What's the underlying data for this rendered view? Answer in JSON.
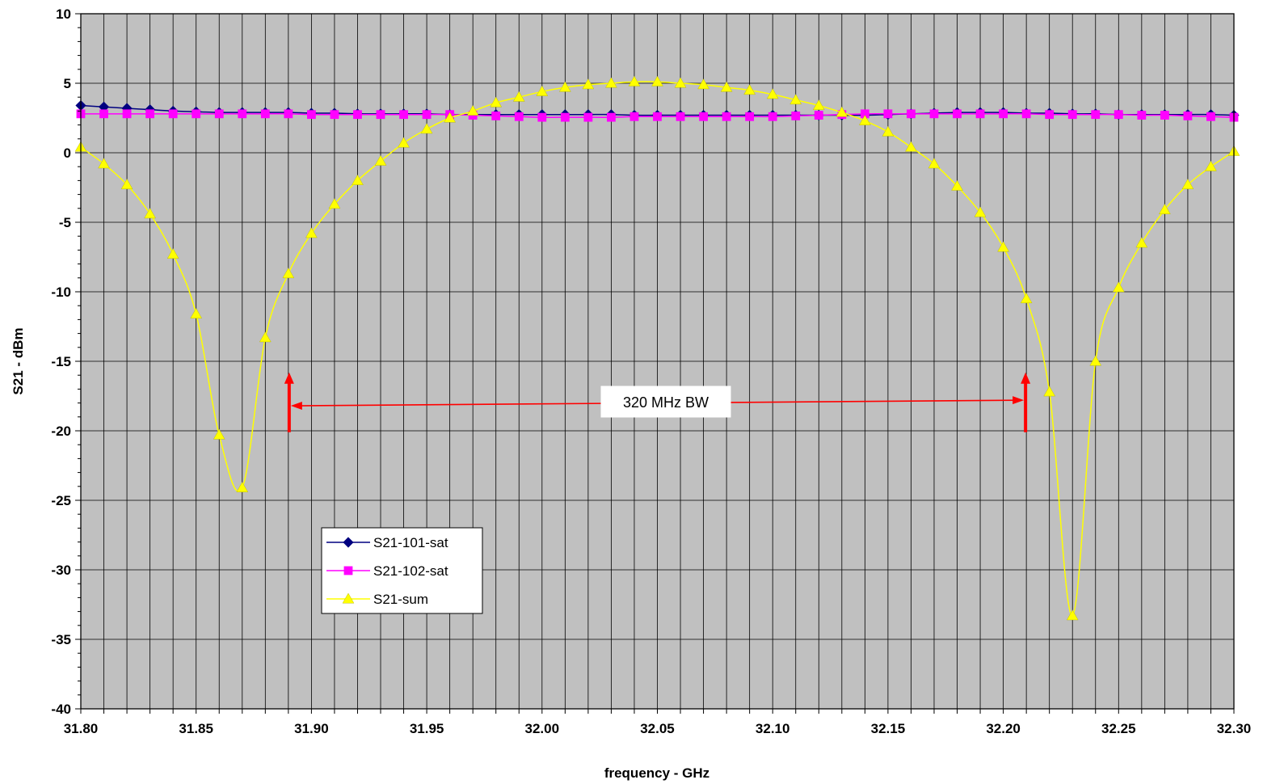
{
  "chart_data": {
    "type": "line",
    "xlabel": "frequency - GHz",
    "ylabel": "S21 - dBm",
    "xlim": [
      31.8,
      32.3
    ],
    "ylim": [
      -40,
      10
    ],
    "x_ticks": [
      "31.80",
      "31.85",
      "31.90",
      "31.95",
      "32.00",
      "32.05",
      "32.10",
      "32.15",
      "32.20",
      "32.25",
      "32.30"
    ],
    "y_ticks": [
      "10",
      "5",
      "0",
      "-5",
      "-10",
      "-15",
      "-20",
      "-25",
      "-30",
      "-35",
      "-40"
    ],
    "grid": true,
    "plot_background": "#c0c0c0",
    "legend_position": "lower-left",
    "x": [
      31.8,
      31.81,
      31.82,
      31.83,
      31.84,
      31.85,
      31.86,
      31.87,
      31.88,
      31.89,
      31.9,
      31.91,
      31.92,
      31.93,
      31.94,
      31.95,
      31.96,
      31.97,
      31.98,
      31.99,
      32.0,
      32.01,
      32.02,
      32.03,
      32.04,
      32.05,
      32.06,
      32.07,
      32.08,
      32.09,
      32.1,
      32.11,
      32.12,
      32.13,
      32.14,
      32.15,
      32.16,
      32.17,
      32.18,
      32.19,
      32.2,
      32.21,
      32.22,
      32.23,
      32.24,
      32.25,
      32.26,
      32.27,
      32.28,
      32.29,
      32.3
    ],
    "series": [
      {
        "name": "S21-101-sat",
        "color": "#000080",
        "marker": "diamond",
        "values": [
          3.4,
          3.3,
          3.2,
          3.1,
          3.0,
          2.95,
          2.9,
          2.9,
          2.9,
          2.9,
          2.85,
          2.85,
          2.8,
          2.8,
          2.8,
          2.8,
          2.75,
          2.75,
          2.75,
          2.75,
          2.75,
          2.75,
          2.75,
          2.75,
          2.7,
          2.7,
          2.7,
          2.7,
          2.7,
          2.7,
          2.7,
          2.7,
          2.7,
          2.7,
          2.7,
          2.75,
          2.8,
          2.85,
          2.9,
          2.9,
          2.9,
          2.85,
          2.85,
          2.8,
          2.8,
          2.75,
          2.75,
          2.75,
          2.75,
          2.75,
          2.7
        ]
      },
      {
        "name": "S21-102-sat",
        "color": "#ff00ff",
        "marker": "square",
        "values": [
          2.8,
          2.8,
          2.8,
          2.8,
          2.8,
          2.8,
          2.8,
          2.8,
          2.8,
          2.8,
          2.75,
          2.75,
          2.75,
          2.75,
          2.75,
          2.75,
          2.75,
          2.7,
          2.65,
          2.6,
          2.55,
          2.55,
          2.55,
          2.55,
          2.6,
          2.6,
          2.6,
          2.6,
          2.6,
          2.6,
          2.6,
          2.65,
          2.7,
          2.75,
          2.8,
          2.8,
          2.8,
          2.8,
          2.8,
          2.8,
          2.8,
          2.8,
          2.75,
          2.75,
          2.75,
          2.75,
          2.7,
          2.7,
          2.65,
          2.6,
          2.55
        ]
      },
      {
        "name": "S21-sum",
        "color": "#ffff00",
        "marker": "triangle",
        "values": [
          0.4,
          -0.8,
          -2.3,
          -4.4,
          -7.3,
          -11.6,
          -20.3,
          -24.1,
          -13.3,
          -8.7,
          -5.8,
          -3.7,
          -2.0,
          -0.6,
          0.7,
          1.7,
          2.5,
          3.0,
          3.6,
          4.0,
          4.4,
          4.7,
          4.9,
          5.0,
          5.1,
          5.1,
          5.0,
          4.9,
          4.7,
          4.5,
          4.2,
          3.8,
          3.4,
          2.9,
          2.3,
          1.5,
          0.4,
          -0.8,
          -2.4,
          -4.3,
          -6.8,
          -10.5,
          -17.2,
          -33.3,
          -15.0,
          -9.7,
          -6.5,
          -4.1,
          -2.3,
          -1.0,
          0.1
        ]
      }
    ],
    "annotation": {
      "label": "320 MHz BW",
      "color": "#ff0000",
      "x_start": 31.89,
      "x_end": 32.21
    }
  }
}
